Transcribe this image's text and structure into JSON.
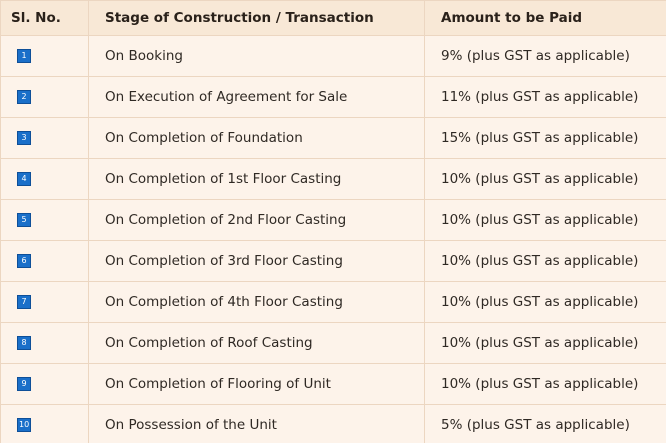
{
  "table": {
    "headers": {
      "sl_no": "Sl. No.",
      "stage": "Stage of Construction / Transaction",
      "amount": "Amount to be Paid"
    },
    "rows": [
      {
        "num": "1",
        "stage": "On Booking",
        "amount": "9% (plus GST as applicable)"
      },
      {
        "num": "2",
        "stage": "On Execution of Agreement for Sale",
        "amount": "11% (plus GST as applicable)"
      },
      {
        "num": "3",
        "stage": "On Completion of Foundation",
        "amount": "15% (plus GST as applicable)"
      },
      {
        "num": "4",
        "stage": "On Completion of 1st Floor Casting",
        "amount": "10% (plus GST as applicable)"
      },
      {
        "num": "5",
        "stage": "On Completion of 2nd Floor Casting",
        "amount": "10% (plus GST as applicable)"
      },
      {
        "num": "6",
        "stage": "On Completion of 3rd Floor Casting",
        "amount": "10% (plus GST as applicable)"
      },
      {
        "num": "7",
        "stage": "On Completion of 4th Floor Casting",
        "amount": "10% (plus GST as applicable)"
      },
      {
        "num": "8",
        "stage": "On Completion of Roof Casting",
        "amount": "10% (plus GST as applicable)"
      },
      {
        "num": "9",
        "stage": "On Completion of Flooring of Unit",
        "amount": "10% (plus GST as applicable)"
      },
      {
        "num": "10",
        "stage": "On Possession of the Unit",
        "amount": "5% (plus GST as applicable)"
      }
    ]
  },
  "colors": {
    "background": "#fdf3ea",
    "header_background": "#f8e8d6",
    "grid_line": "#ecd6c1",
    "badge": "#1a6fc9"
  }
}
